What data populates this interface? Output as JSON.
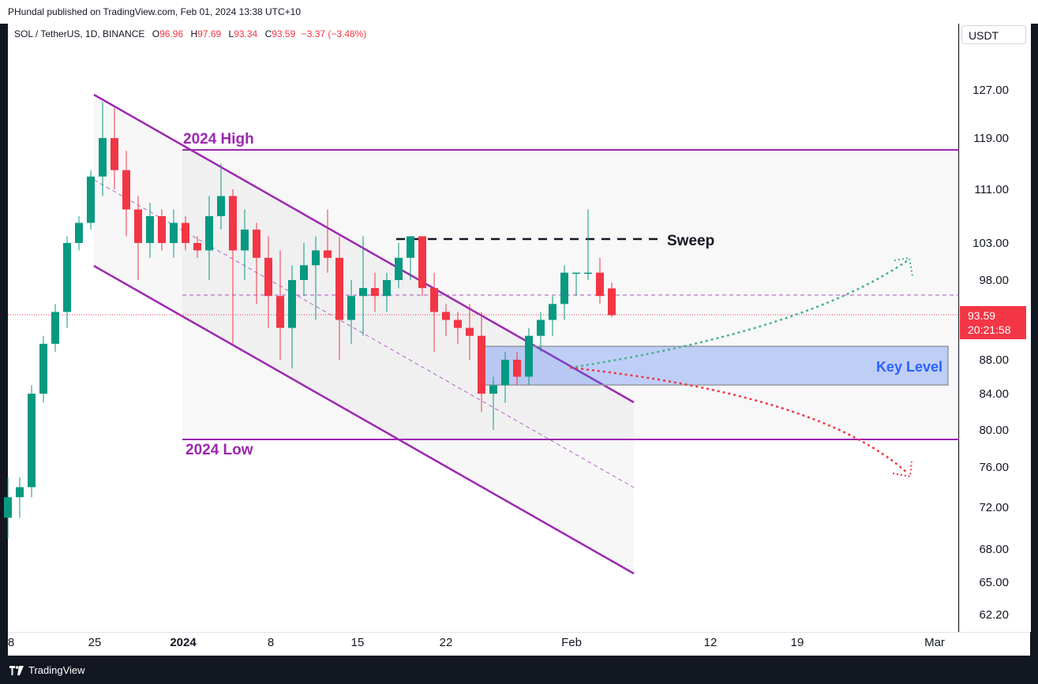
{
  "header": {
    "published": "PHundal published on TradingView.com, Feb 01, 2024 13:38 UTC+10"
  },
  "legend": {
    "symbol": "SOL / TetherUS, 1D, BINANCE",
    "o_label": "O",
    "o_value": "96.96",
    "h_label": "H",
    "h_value": "97.69",
    "l_label": "L",
    "l_value": "93.34",
    "c_label": "C",
    "c_value": "93.59",
    "change": "−3.37 (−3.48%)"
  },
  "currency": "USDT",
  "current_price": {
    "price": "93.59",
    "countdown": "20:21:58"
  },
  "colors": {
    "up": "#089981",
    "down": "#f23645",
    "channel": "#9c27b0",
    "zone": "#3d6ef5"
  },
  "footer": {
    "brand": "TradingView"
  },
  "chart_data": {
    "type": "candlestick",
    "symbol": "SOL / TetherUS",
    "y_ticks": [
      "127.00",
      "119.00",
      "111.00",
      "103.00",
      "98.00",
      "88.00",
      "84.00",
      "80.00",
      "76.00",
      "72.00",
      "68.00",
      "65.00",
      "62.20"
    ],
    "x_ticks": [
      "8",
      "25",
      "2024",
      "8",
      "15",
      "22",
      "Feb",
      "12",
      "19",
      "Mar"
    ],
    "ohlc": [
      [
        71,
        75,
        69,
        73
      ],
      [
        73,
        75,
        71,
        74
      ],
      [
        74,
        85,
        73,
        84
      ],
      [
        84,
        91,
        83,
        90
      ],
      [
        90,
        95,
        89,
        94
      ],
      [
        94,
        104,
        92,
        103
      ],
      [
        103,
        107,
        102,
        106
      ],
      [
        106,
        114,
        105,
        113
      ],
      [
        113,
        125,
        110,
        119
      ],
      [
        119,
        124,
        111,
        114
      ],
      [
        114,
        117,
        104,
        108
      ],
      [
        108,
        110,
        98,
        103
      ],
      [
        103,
        109,
        101,
        107
      ],
      [
        107,
        108,
        102,
        103
      ],
      [
        103,
        108,
        101,
        106
      ],
      [
        106,
        107,
        102,
        103
      ],
      [
        103,
        104,
        101,
        102
      ],
      [
        102,
        110,
        98,
        107
      ],
      [
        107,
        115,
        105,
        110
      ],
      [
        110,
        111,
        90,
        102
      ],
      [
        102,
        108,
        98,
        105
      ],
      [
        105,
        106,
        95,
        101
      ],
      [
        101,
        104,
        92,
        96
      ],
      [
        96,
        102,
        88,
        92
      ],
      [
        92,
        100,
        87,
        98
      ],
      [
        98,
        103,
        96,
        100
      ],
      [
        100,
        104,
        93,
        102
      ],
      [
        102,
        108,
        99,
        101
      ],
      [
        101,
        104,
        88,
        93
      ],
      [
        93,
        98,
        90,
        96
      ],
      [
        96,
        104,
        91,
        97
      ],
      [
        97,
        99,
        94,
        96
      ],
      [
        96,
        99,
        94,
        98
      ],
      [
        98,
        103,
        97,
        101
      ],
      [
        101,
        104,
        98,
        104
      ],
      [
        104,
        104,
        96,
        97
      ],
      [
        97,
        99,
        89,
        94
      ],
      [
        94,
        95,
        91,
        93
      ],
      [
        93,
        94,
        90,
        92
      ],
      [
        92,
        95,
        88,
        91
      ],
      [
        91,
        94,
        82,
        84
      ],
      [
        84,
        86,
        80,
        85
      ],
      [
        85,
        89,
        83,
        88
      ],
      [
        88,
        89,
        85,
        86
      ],
      [
        86,
        92,
        85,
        91
      ],
      [
        91,
        94,
        89,
        93
      ],
      [
        93,
        96,
        91,
        95
      ],
      [
        95,
        100,
        93,
        99
      ],
      [
        99,
        99,
        96,
        99
      ],
      [
        99,
        108,
        98,
        99
      ],
      [
        99,
        101,
        95,
        96
      ],
      [
        96.96,
        97.69,
        93.34,
        93.59
      ]
    ],
    "annotations": [
      "2024 High",
      "2024 Low",
      "Sweep",
      "Key Level"
    ]
  }
}
